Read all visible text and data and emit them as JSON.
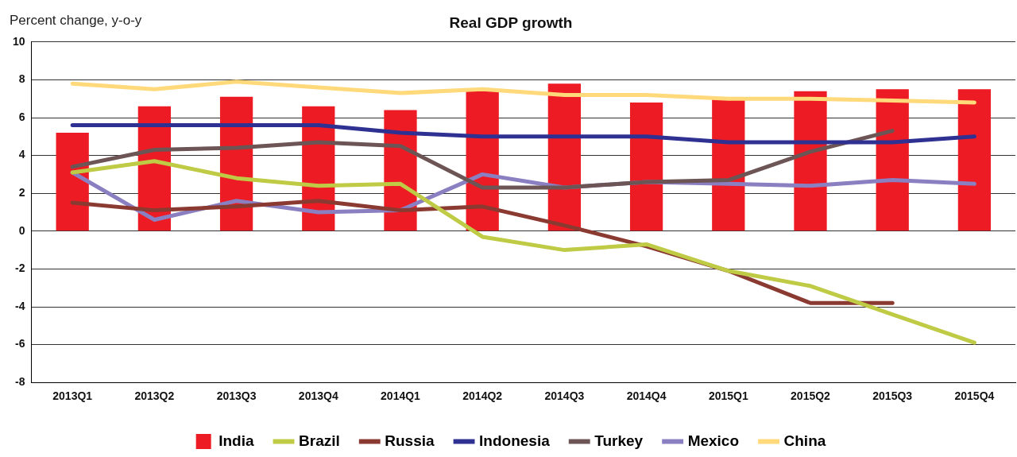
{
  "chart_data": {
    "type": "line",
    "title": "Real GDP growth",
    "ylabel": "Percent change, y-o-y",
    "categories": [
      "2013Q1",
      "2013Q2",
      "2013Q3",
      "2013Q4",
      "2014Q1",
      "2014Q2",
      "2014Q3",
      "2014Q4",
      "2015Q1",
      "2015Q2",
      "2015Q3",
      "2015Q4"
    ],
    "series": [
      {
        "name": "India",
        "type": "bar",
        "color": "#ed1c24",
        "values": [
          5.2,
          6.6,
          7.1,
          6.6,
          6.4,
          7.4,
          7.8,
          6.8,
          7.0,
          7.4,
          7.5,
          7.5
        ]
      },
      {
        "name": "Brazil",
        "color": "#bfca45",
        "values": [
          3.1,
          3.7,
          2.8,
          2.4,
          2.5,
          -0.3,
          -1.0,
          -0.7,
          -2.1,
          -2.9,
          -4.4,
          -5.9
        ]
      },
      {
        "name": "Russia",
        "color": "#8b3a32",
        "values": [
          1.5,
          1.1,
          1.3,
          1.6,
          1.1,
          1.3,
          0.3,
          -0.8,
          -2.1,
          -3.8,
          -3.8,
          null
        ]
      },
      {
        "name": "Indonesia",
        "color": "#2e3192",
        "values": [
          5.6,
          5.6,
          5.6,
          5.6,
          5.2,
          5.0,
          5.0,
          5.0,
          4.7,
          4.7,
          4.7,
          5.0
        ]
      },
      {
        "name": "Turkey",
        "color": "#6d5555",
        "values": [
          3.4,
          4.3,
          4.4,
          4.7,
          4.5,
          2.3,
          2.3,
          2.6,
          2.7,
          4.2,
          5.3,
          null
        ]
      },
      {
        "name": "Mexico",
        "color": "#8a7fc0",
        "values": [
          3.1,
          0.6,
          1.6,
          1.0,
          1.1,
          3.0,
          2.3,
          2.6,
          2.5,
          2.4,
          2.7,
          2.5
        ]
      },
      {
        "name": "China",
        "color": "#ffd97a",
        "values": [
          7.8,
          7.5,
          7.9,
          7.6,
          7.3,
          7.5,
          7.2,
          7.2,
          7.0,
          7.0,
          6.9,
          6.8
        ]
      }
    ],
    "ylim": [
      -8,
      10
    ],
    "yticks": [
      -8,
      -6,
      -4,
      -2,
      0,
      2,
      4,
      6,
      8,
      10
    ],
    "grid": "y",
    "legend": "bottom",
    "marker": "none",
    "line_style": "solid"
  }
}
